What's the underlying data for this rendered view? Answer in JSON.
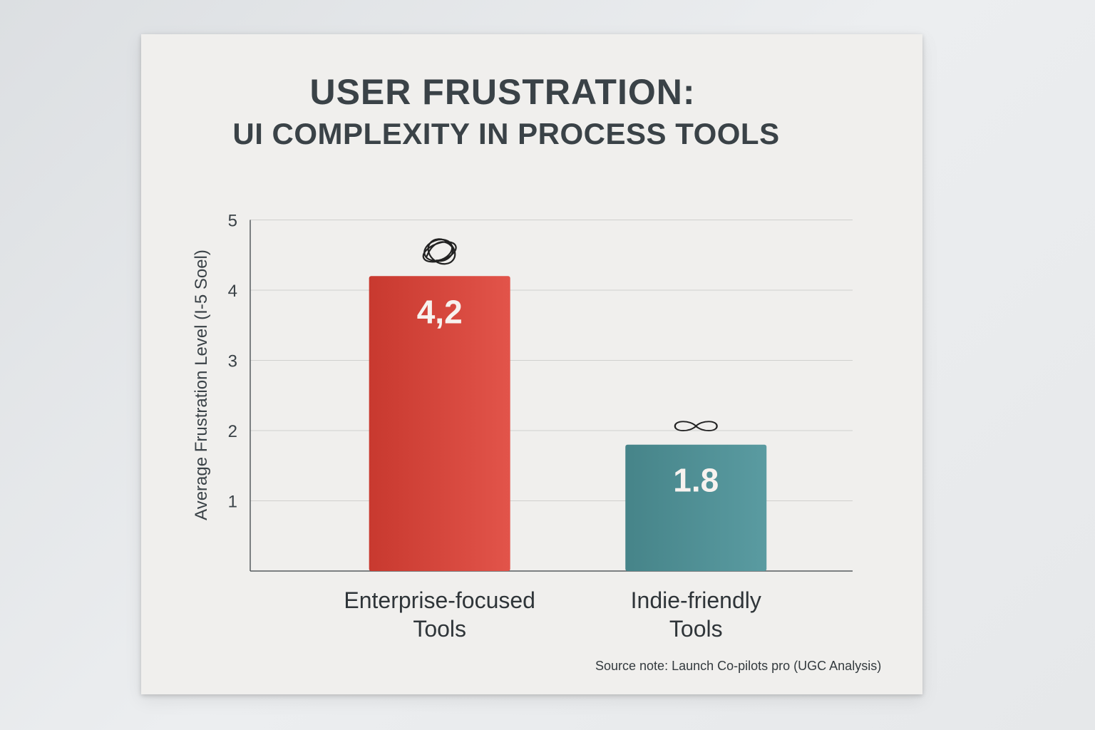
{
  "chart_data": {
    "type": "bar",
    "title": "USER FRUSTRATION:",
    "subtitle": "UI COMPLEXITY IN PROCESS TOOLS",
    "ylabel": "Average Frustration Level (I-5 Soel)",
    "xlabel": "",
    "ylim": [
      0,
      5
    ],
    "yticks": [
      {
        "value": 1,
        "label": "1"
      },
      {
        "value": 2,
        "label": "2"
      },
      {
        "value": 3,
        "label": "3"
      },
      {
        "value": 4,
        "label": "4"
      },
      {
        "value": 5,
        "label": "5"
      }
    ],
    "grid": true,
    "bars": [
      {
        "category_lines": [
          "Enterprise-focused",
          "Tools"
        ],
        "value": 4.2,
        "value_label": "4,2",
        "color": "#d9453a",
        "icon": "tangle-icon"
      },
      {
        "category_lines": [
          "Indie-friendly",
          "Tools"
        ],
        "value": 1.8,
        "value_label": "1.8",
        "color": "#4f9096",
        "icon": "infinity-icon"
      }
    ],
    "source": "Source note: Launch Co-pilots pro (UGC Analysis)"
  }
}
